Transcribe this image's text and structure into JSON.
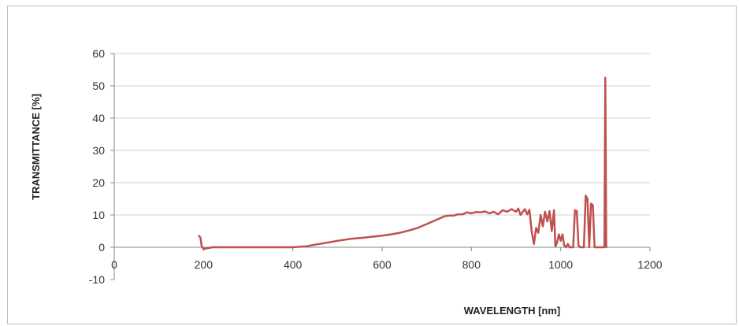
{
  "chart_data": {
    "type": "line",
    "title": "",
    "xlabel": "WAVELENGTH [nm]",
    "ylabel": "TRANSMITTANCE [%]",
    "xlim": [
      0,
      1200
    ],
    "ylim": [
      -10,
      60
    ],
    "xticks": [
      0,
      200,
      400,
      600,
      800,
      1000,
      1200
    ],
    "yticks": [
      -10,
      0,
      10,
      20,
      30,
      40,
      50,
      60
    ],
    "grid": {
      "horizontal": true,
      "vertical": false
    },
    "legend": "none",
    "series": [
      {
        "color": "#c0504d",
        "x": [
          190,
          193,
          196,
          200,
          220,
          260,
          300,
          350,
          400,
          430,
          450,
          480,
          500,
          530,
          560,
          580,
          600,
          620,
          640,
          660,
          680,
          700,
          720,
          740,
          750,
          760,
          770,
          780,
          790,
          800,
          810,
          820,
          830,
          840,
          850,
          860,
          870,
          880,
          890,
          900,
          905,
          910,
          915,
          920,
          925,
          930,
          935,
          940,
          945,
          950,
          955,
          960,
          965,
          970,
          975,
          980,
          985,
          988,
          992,
          996,
          1000,
          1004,
          1008,
          1012,
          1016,
          1020,
          1024,
          1028,
          1032,
          1036,
          1040,
          1044,
          1048,
          1052,
          1056,
          1060,
          1064,
          1068,
          1072,
          1076,
          1080,
          1084,
          1088,
          1092,
          1096,
          1098,
          1100,
          1102
        ],
        "y": [
          3.5,
          3.0,
          0.2,
          -0.5,
          0,
          0,
          0,
          0,
          0,
          0.3,
          0.8,
          1.5,
          2.0,
          2.6,
          3.0,
          3.3,
          3.6,
          4.0,
          4.5,
          5.2,
          6.0,
          7.2,
          8.4,
          9.6,
          9.8,
          9.8,
          10.2,
          10.2,
          10.8,
          10.5,
          10.9,
          10.8,
          11.1,
          10.5,
          11.0,
          10.2,
          11.5,
          11.0,
          11.8,
          11.0,
          12.0,
          10.0,
          11.0,
          11.8,
          10.2,
          11.6,
          5.0,
          1.0,
          6.0,
          4.5,
          10.0,
          6.5,
          11.0,
          8.0,
          11.2,
          5.0,
          11.5,
          0.2,
          1.5,
          4.0,
          2.0,
          4.0,
          0.5,
          0.0,
          1.0,
          0.0,
          0.0,
          0.0,
          11.5,
          11.2,
          0.5,
          0.0,
          0.0,
          0.0,
          16.0,
          15.0,
          0.0,
          13.5,
          13.0,
          0.0,
          0.0,
          0.0,
          0.0,
          0.0,
          0.0,
          0.0,
          52.5,
          0.0
        ]
      }
    ]
  }
}
